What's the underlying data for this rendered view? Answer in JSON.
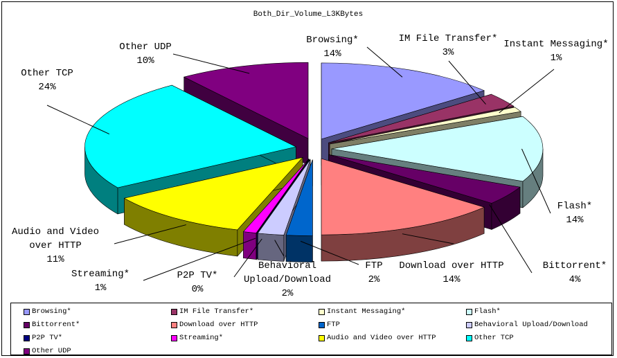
{
  "chart_data": {
    "type": "pie",
    "title": "Both_Dir_Volume_L3KBytes",
    "categories": [
      "Browsing*",
      "IM File Transfer*",
      "Instant Messaging*",
      "Flash*",
      "Bittorrent*",
      "Download over HTTP",
      "FTP",
      "Behavioral Upload/Download",
      "P2P TV*",
      "Streaming*",
      "Audio and Video over HTTP",
      "Other TCP",
      "Other UDP"
    ],
    "values": [
      14,
      3,
      1,
      14,
      4,
      14,
      2,
      2,
      0,
      1,
      11,
      24,
      10
    ],
    "value_labels": [
      "14%",
      "3%",
      "1%",
      "14%",
      "4%",
      "14%",
      "2%",
      "2%",
      "0%",
      "1%",
      "11%",
      "24%",
      "10%"
    ],
    "colors": [
      "#9999ff",
      "#993366",
      "#ffffcc",
      "#ccffff",
      "#660066",
      "#ff8080",
      "#0066cc",
      "#ccccff",
      "#000080",
      "#ff00ff",
      "#ffff00",
      "#00ffff",
      "#800080"
    ],
    "legend": "bottom"
  }
}
